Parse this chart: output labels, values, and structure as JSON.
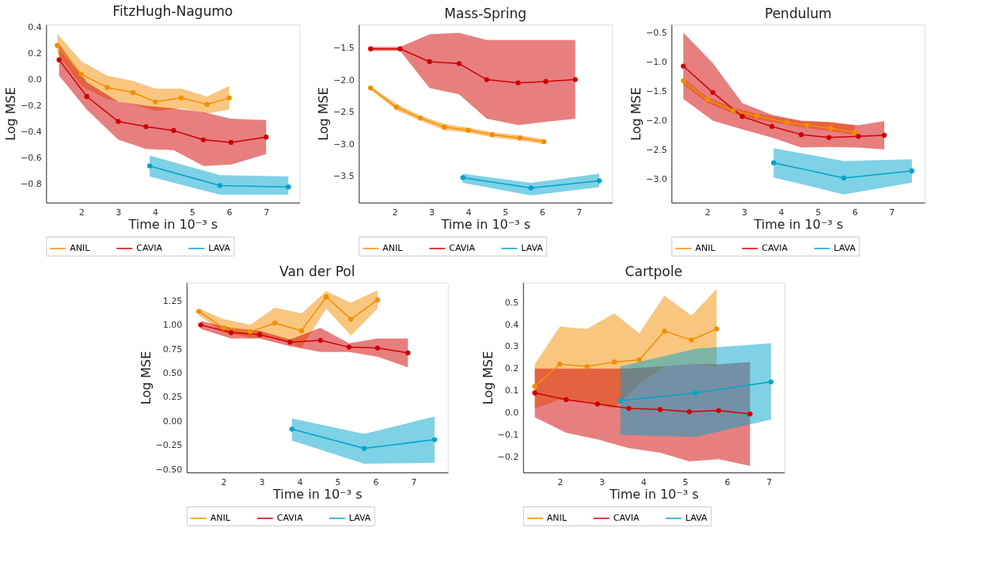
{
  "chart_data": [
    {
      "type": "line",
      "title": "FitzHugh-Nagumo",
      "xlabel": "Time in 10⁻³ s",
      "ylabel": "Log MSE",
      "legend": "bottom",
      "marker": "circle",
      "line_style": "solid",
      "xlim": [
        1.05,
        7.9
      ],
      "xticks": [
        2,
        3,
        4,
        5,
        6,
        7
      ],
      "ylim": [
        -0.94,
        0.42
      ],
      "yticks": [
        {
          "value": 0.4,
          "label": "0.4"
        },
        {
          "value": 0.2,
          "label": "0.2"
        },
        {
          "value": 0,
          "label": "0.0"
        },
        {
          "value": -0.2,
          "label": "−0.2"
        },
        {
          "value": -0.4,
          "label": "−0.4"
        },
        {
          "value": -0.6,
          "label": "−0.6"
        },
        {
          "value": -0.8,
          "label": "−0.8"
        }
      ],
      "series": [
        {
          "name": "ANIL",
          "color": "#f28e00",
          "x": [
            1.35,
            2.0,
            2.7,
            3.4,
            4.0,
            4.7,
            5.4,
            6.0
          ],
          "values": [
            0.26,
            0.04,
            -0.06,
            -0.1,
            -0.17,
            -0.14,
            -0.19,
            -0.14
          ],
          "upper": [
            0.35,
            0.14,
            0.03,
            -0.01,
            -0.07,
            -0.07,
            -0.13,
            -0.05
          ],
          "lower": [
            0.2,
            -0.05,
            -0.15,
            -0.19,
            -0.24,
            -0.22,
            -0.26,
            -0.23
          ]
        },
        {
          "name": "CAVIA",
          "color": "#d00000",
          "x": [
            1.4,
            2.15,
            3.0,
            3.75,
            4.5,
            5.3,
            6.05,
            7.0
          ],
          "values": [
            0.15,
            -0.13,
            -0.32,
            -0.36,
            -0.39,
            -0.46,
            -0.48,
            -0.44
          ],
          "upper": [
            0.27,
            -0.02,
            -0.17,
            -0.2,
            -0.22,
            -0.25,
            -0.3,
            -0.31
          ],
          "lower": [
            0.03,
            -0.23,
            -0.46,
            -0.53,
            -0.54,
            -0.66,
            -0.65,
            -0.57
          ]
        },
        {
          "name": "LAVA",
          "color": "#00a4cc",
          "x": [
            3.85,
            5.75,
            7.6
          ],
          "values": [
            -0.66,
            -0.81,
            -0.82
          ],
          "upper": [
            -0.58,
            -0.73,
            -0.74
          ],
          "lower": [
            -0.74,
            -0.88,
            -0.88
          ]
        }
      ]
    },
    {
      "type": "line",
      "title": "Mass-Spring",
      "xlabel": "Time in 10⁻³ s",
      "ylabel": "Log MSE",
      "legend": "bottom",
      "marker": "circle",
      "line_style": "solid",
      "xlim": [
        1.03,
        7.9
      ],
      "xticks": [
        2,
        3,
        4,
        5,
        6,
        7
      ],
      "ylim": [
        -3.91,
        -1.13
      ],
      "yticks": [
        {
          "value": -1.5,
          "label": "−1.5"
        },
        {
          "value": -2,
          "label": "−2.0"
        },
        {
          "value": -2.5,
          "label": "−2.5"
        },
        {
          "value": -3,
          "label": "−3.0"
        },
        {
          "value": -3.5,
          "label": "−3.5"
        }
      ],
      "series": [
        {
          "name": "ANIL",
          "color": "#f28e00",
          "x": [
            1.35,
            2.05,
            2.7,
            3.35,
            4.0,
            4.65,
            5.4,
            6.05
          ],
          "values": [
            -2.12,
            -2.42,
            -2.59,
            -2.73,
            -2.78,
            -2.85,
            -2.9,
            -2.96
          ],
          "upper": [
            -2.09,
            -2.37,
            -2.55,
            -2.68,
            -2.74,
            -2.81,
            -2.86,
            -2.92
          ],
          "lower": [
            -2.15,
            -2.47,
            -2.63,
            -2.78,
            -2.82,
            -2.89,
            -2.94,
            -3.0
          ]
        },
        {
          "name": "CAVIA",
          "color": "#d00000",
          "x": [
            1.35,
            2.15,
            2.95,
            3.75,
            4.5,
            5.35,
            6.1,
            6.9
          ],
          "values": [
            -1.51,
            -1.51,
            -1.71,
            -1.74,
            -1.99,
            -2.04,
            -2.02,
            -1.99
          ],
          "upper": [
            -1.48,
            -1.48,
            -1.28,
            -1.26,
            -1.37,
            -1.37,
            -1.37,
            -1.37
          ],
          "lower": [
            -1.54,
            -1.54,
            -2.12,
            -2.22,
            -2.6,
            -2.7,
            -2.65,
            -2.6
          ]
        },
        {
          "name": "LAVA",
          "color": "#00a4cc",
          "x": [
            3.85,
            5.7,
            7.55
          ],
          "values": [
            -3.52,
            -3.68,
            -3.57
          ],
          "upper": [
            -3.46,
            -3.6,
            -3.46
          ],
          "lower": [
            -3.6,
            -3.8,
            -3.67
          ]
        }
      ]
    },
    {
      "type": "line",
      "title": "Pendulum",
      "xlabel": "Time in 10⁻³ s",
      "ylabel": "Log MSE",
      "legend": "bottom",
      "marker": "circle",
      "line_style": "solid",
      "xlim": [
        1.03,
        7.9
      ],
      "xticks": [
        2,
        3,
        4,
        5,
        6,
        7
      ],
      "ylim": [
        -3.4,
        -0.36
      ],
      "yticks": [
        {
          "value": -0.5,
          "label": "−0.5"
        },
        {
          "value": -1,
          "label": "−1.0"
        },
        {
          "value": -1.5,
          "label": "−1.5"
        },
        {
          "value": -2,
          "label": "−2.0"
        },
        {
          "value": -2.5,
          "label": "−2.5"
        },
        {
          "value": -3,
          "label": "−3.0"
        }
      ],
      "series": [
        {
          "name": "ANIL",
          "color": "#f28e00",
          "x": [
            1.35,
            2.0,
            2.7,
            3.35,
            4.15,
            4.7,
            5.35,
            6.0
          ],
          "values": [
            -1.32,
            -1.64,
            -1.83,
            -1.92,
            -2.03,
            -2.08,
            -2.13,
            -2.2
          ],
          "upper": [
            -1.27,
            -1.6,
            -1.78,
            -1.88,
            -1.97,
            -2.02,
            -2.02,
            -2.09
          ],
          "lower": [
            -1.38,
            -1.7,
            -1.88,
            -1.98,
            -2.07,
            -2.13,
            -2.18,
            -2.24
          ]
        },
        {
          "name": "CAVIA",
          "color": "#d00000",
          "x": [
            1.35,
            2.15,
            2.95,
            3.75,
            4.55,
            5.3,
            6.1,
            6.8
          ],
          "values": [
            -1.07,
            -1.52,
            -1.93,
            -2.1,
            -2.24,
            -2.29,
            -2.27,
            -2.25
          ],
          "upper": [
            -0.5,
            -1.02,
            -1.7,
            -1.9,
            -2.0,
            -2.03,
            -2.08,
            -2.01
          ],
          "lower": [
            -1.63,
            -2.0,
            -2.15,
            -2.29,
            -2.46,
            -2.45,
            -2.46,
            -2.49
          ]
        },
        {
          "name": "LAVA",
          "color": "#00a4cc",
          "x": [
            3.8,
            5.7,
            7.55
          ],
          "values": [
            -2.72,
            -2.98,
            -2.86
          ],
          "upper": [
            -2.47,
            -2.69,
            -2.66
          ],
          "lower": [
            -2.97,
            -3.26,
            -3.06
          ]
        }
      ]
    },
    {
      "type": "line",
      "title": "Van der Pol",
      "xlabel": "Time in 10⁻³ s",
      "ylabel": "Log MSE",
      "legend": "bottom",
      "marker": "circle",
      "line_style": "solid",
      "xlim": [
        1.03,
        7.9
      ],
      "xticks": [
        2,
        3,
        4,
        5,
        6,
        7
      ],
      "ylim": [
        -0.53,
        1.44
      ],
      "yticks": [
        {
          "value": 1.25,
          "label": "1.25"
        },
        {
          "value": 1,
          "label": "1.00"
        },
        {
          "value": 0.75,
          "label": "0.75"
        },
        {
          "value": 0.5,
          "label": "0.50"
        },
        {
          "value": 0.25,
          "label": "0.25"
        },
        {
          "value": 0,
          "label": "0.00"
        },
        {
          "value": -0.25,
          "label": "−0.25"
        },
        {
          "value": -0.5,
          "label": "−0.50"
        }
      ],
      "series": [
        {
          "name": "ANIL",
          "color": "#f28e00",
          "x": [
            1.35,
            2.0,
            2.7,
            3.35,
            4.05,
            4.7,
            5.35,
            6.05
          ],
          "values": [
            1.14,
            0.97,
            0.93,
            1.02,
            0.94,
            1.29,
            1.06,
            1.26
          ],
          "upper": [
            1.17,
            1.06,
            1.0,
            1.18,
            1.12,
            1.35,
            1.23,
            1.36
          ],
          "lower": [
            1.1,
            0.92,
            0.87,
            0.87,
            0.76,
            1.17,
            0.89,
            1.17
          ]
        },
        {
          "name": "CAVIA",
          "color": "#d00000",
          "x": [
            1.4,
            2.2,
            2.95,
            3.75,
            4.55,
            5.3,
            6.05,
            6.85
          ],
          "values": [
            1.0,
            0.92,
            0.9,
            0.82,
            0.84,
            0.77,
            0.76,
            0.71
          ],
          "upper": [
            1.04,
            0.97,
            0.94,
            0.85,
            0.97,
            0.81,
            0.86,
            0.86
          ],
          "lower": [
            0.96,
            0.86,
            0.86,
            0.78,
            0.72,
            0.72,
            0.67,
            0.56
          ]
        },
        {
          "name": "LAVA",
          "color": "#00a4cc",
          "x": [
            3.8,
            5.7,
            7.55
          ],
          "values": [
            -0.08,
            -0.28,
            -0.19
          ],
          "upper": [
            0.03,
            -0.13,
            0.05
          ],
          "lower": [
            -0.2,
            -0.44,
            -0.43
          ]
        }
      ]
    },
    {
      "type": "line",
      "title": "Cartpole",
      "xlabel": "Time in 10⁻³ s",
      "ylabel": "Log MSE",
      "legend": "bottom",
      "marker": "circle",
      "line_style": "solid",
      "xlim": [
        1.12,
        7.37
      ],
      "xticks": [
        2,
        3,
        4,
        5,
        6,
        7
      ],
      "ylim": [
        -0.27,
        0.59
      ],
      "yticks": [
        {
          "value": 0.5,
          "label": "0.5"
        },
        {
          "value": 0.4,
          "label": "0.4"
        },
        {
          "value": 0.3,
          "label": "0.3"
        },
        {
          "value": 0.2,
          "label": "0.2"
        },
        {
          "value": 0.1,
          "label": "0.1"
        },
        {
          "value": 0,
          "label": "0.0"
        },
        {
          "value": -0.1,
          "label": "−0.1"
        },
        {
          "value": -0.2,
          "label": "−0.2"
        }
      ],
      "series": [
        {
          "name": "ANIL",
          "color": "#f28e00",
          "x": [
            1.4,
            2.0,
            2.65,
            3.3,
            3.9,
            4.5,
            5.15,
            5.75
          ],
          "values": [
            0.12,
            0.22,
            0.21,
            0.23,
            0.24,
            0.37,
            0.33,
            0.38
          ],
          "upper": [
            0.22,
            0.39,
            0.38,
            0.45,
            0.36,
            0.53,
            0.44,
            0.56
          ],
          "lower": [
            0.02,
            0.06,
            0.05,
            0.02,
            0.13,
            0.21,
            0.22,
            0.21
          ]
        },
        {
          "name": "CAVIA",
          "color": "#d00000",
          "x": [
            1.4,
            2.15,
            2.9,
            3.65,
            4.4,
            5.1,
            5.8,
            6.55
          ],
          "values": [
            0.09,
            0.06,
            0.04,
            0.02,
            0.015,
            0.005,
            0.01,
            -0.005
          ],
          "upper": [
            0.2,
            0.2,
            0.2,
            0.2,
            0.21,
            0.22,
            0.22,
            0.23
          ],
          "lower": [
            -0.02,
            -0.09,
            -0.12,
            -0.16,
            -0.18,
            -0.22,
            -0.21,
            -0.24
          ]
        },
        {
          "name": "LAVA",
          "color": "#00a4cc",
          "x": [
            3.45,
            5.25,
            7.05
          ],
          "values": [
            0.055,
            0.09,
            0.14
          ],
          "upper": [
            0.21,
            0.29,
            0.315
          ],
          "lower": [
            -0.1,
            -0.11,
            -0.03
          ]
        }
      ]
    }
  ]
}
